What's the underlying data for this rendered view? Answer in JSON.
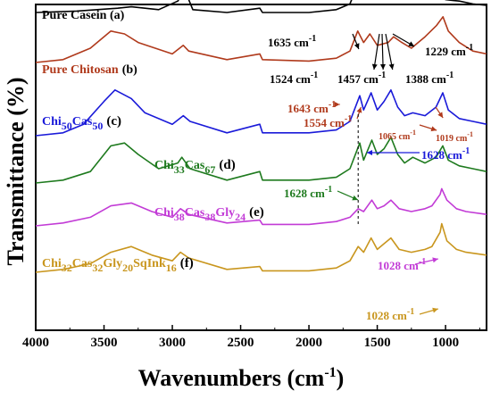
{
  "chart_data": {
    "type": "line",
    "title": "",
    "xlabel": "Wavenumbers (cm",
    "xlabel_sup": "-1",
    "xlabel_tail": ")",
    "ylabel": "Transmittance (%)",
    "xlim": [
      4000,
      700
    ],
    "x_reversed": true,
    "xticks": [
      4000,
      3500,
      3000,
      2500,
      2000,
      1500,
      1000
    ],
    "xtick_labels": [
      "4000",
      "3500",
      "3000",
      "2500",
      "2000",
      "1500",
      "1000"
    ],
    "yaxis_tick_labels": false,
    "grid": false,
    "legend": "inline labels next to each trace",
    "reference_line_x": 1640,
    "series": [
      {
        "label": "Pure Casein (a)",
        "color": "#000000",
        "baseline": 0.0,
        "points": [
          [
            4000,
            0
          ],
          [
            3700,
            -1
          ],
          [
            3400,
            -3
          ],
          [
            3300,
            -4
          ],
          [
            3100,
            -2
          ],
          [
            2960,
            -8
          ],
          [
            2930,
            -13
          ],
          [
            2880,
            -9
          ],
          [
            2850,
            -2
          ],
          [
            2600,
            0
          ],
          [
            2360,
            -3
          ],
          [
            2340,
            0
          ],
          [
            2000,
            0
          ],
          [
            1800,
            -2
          ],
          [
            1700,
            -6
          ],
          [
            1650,
            -18
          ],
          [
            1635,
            -14
          ],
          [
            1600,
            -10
          ],
          [
            1540,
            -24
          ],
          [
            1524,
            -20
          ],
          [
            1500,
            -15
          ],
          [
            1457,
            -22
          ],
          [
            1420,
            -15
          ],
          [
            1388,
            -20
          ],
          [
            1350,
            -15
          ],
          [
            1300,
            -12
          ],
          [
            1240,
            -18
          ],
          [
            1229,
            -16
          ],
          [
            1150,
            -10
          ],
          [
            1080,
            -14
          ],
          [
            1000,
            -9
          ],
          [
            900,
            -8
          ],
          [
            800,
            -6
          ],
          [
            700,
            -5
          ]
        ]
      },
      {
        "label": "Pure Chitosan",
        "label_suffix": "(b)",
        "color": "#b03a1c",
        "baseline": 0.0,
        "points": [
          [
            4000,
            0
          ],
          [
            3800,
            -2
          ],
          [
            3600,
            -10
          ],
          [
            3450,
            -22
          ],
          [
            3350,
            -20
          ],
          [
            3250,
            -14
          ],
          [
            3000,
            -6
          ],
          [
            2920,
            -12
          ],
          [
            2880,
            -8
          ],
          [
            2600,
            -2
          ],
          [
            2360,
            -6
          ],
          [
            2340,
            -2
          ],
          [
            2000,
            -1
          ],
          [
            1800,
            -3
          ],
          [
            1700,
            -8
          ],
          [
            1643,
            -22
          ],
          [
            1600,
            -14
          ],
          [
            1554,
            -20
          ],
          [
            1500,
            -12
          ],
          [
            1420,
            -14
          ],
          [
            1380,
            -18
          ],
          [
            1320,
            -14
          ],
          [
            1250,
            -10
          ],
          [
            1150,
            -18
          ],
          [
            1065,
            -26
          ],
          [
            1019,
            -32
          ],
          [
            980,
            -22
          ],
          [
            900,
            -14
          ],
          [
            800,
            -8
          ],
          [
            700,
            -6
          ]
        ]
      },
      {
        "label": "Chi₅₀Cas₅₀",
        "label_main": "Chi",
        "label_sub1": "50",
        "label_mid": "Cas",
        "label_sub2": "50",
        "label_suffix": "(c)",
        "color": "#1a1ad9",
        "baseline": 0.0,
        "points": [
          [
            4000,
            0
          ],
          [
            3800,
            -2
          ],
          [
            3650,
            -8
          ],
          [
            3500,
            -24
          ],
          [
            3420,
            -32
          ],
          [
            3300,
            -26
          ],
          [
            3200,
            -16
          ],
          [
            3000,
            -8
          ],
          [
            2920,
            -14
          ],
          [
            2870,
            -10
          ],
          [
            2600,
            -2
          ],
          [
            2360,
            -8
          ],
          [
            2340,
            -2
          ],
          [
            2000,
            -2
          ],
          [
            1800,
            -4
          ],
          [
            1700,
            -10
          ],
          [
            1628,
            -28
          ],
          [
            1600,
            -18
          ],
          [
            1545,
            -30
          ],
          [
            1500,
            -18
          ],
          [
            1450,
            -24
          ],
          [
            1400,
            -32
          ],
          [
            1350,
            -20
          ],
          [
            1300,
            -14
          ],
          [
            1240,
            -16
          ],
          [
            1150,
            -14
          ],
          [
            1070,
            -20
          ],
          [
            1020,
            -30
          ],
          [
            980,
            -18
          ],
          [
            900,
            -12
          ],
          [
            800,
            -10
          ],
          [
            700,
            -8
          ]
        ]
      },
      {
        "label": "Chi₃₃Cas₆₇",
        "label_main": "Chi",
        "label_sub1": "33",
        "label_mid": "Cas",
        "label_sub2": "67",
        "label_suffix": "(d)",
        "color": "#1e7a1e",
        "baseline": 0.0,
        "points": [
          [
            4000,
            0
          ],
          [
            3800,
            -2
          ],
          [
            3600,
            -8
          ],
          [
            3450,
            -26
          ],
          [
            3350,
            -28
          ],
          [
            3250,
            -20
          ],
          [
            3100,
            -10
          ],
          [
            2960,
            -14
          ],
          [
            2930,
            -18
          ],
          [
            2870,
            -10
          ],
          [
            2600,
            -2
          ],
          [
            2360,
            -8
          ],
          [
            2340,
            -2
          ],
          [
            2000,
            -2
          ],
          [
            1800,
            -4
          ],
          [
            1700,
            -10
          ],
          [
            1628,
            -28
          ],
          [
            1600,
            -16
          ],
          [
            1540,
            -30
          ],
          [
            1500,
            -20
          ],
          [
            1450,
            -24
          ],
          [
            1400,
            -32
          ],
          [
            1350,
            -20
          ],
          [
            1300,
            -14
          ],
          [
            1240,
            -18
          ],
          [
            1150,
            -14
          ],
          [
            1070,
            -18
          ],
          [
            1020,
            -26
          ],
          [
            980,
            -16
          ],
          [
            900,
            -12
          ],
          [
            800,
            -10
          ],
          [
            700,
            -8
          ]
        ]
      },
      {
        "label": "Chi₃₈Cas₃₈Gly₂₄",
        "label_main": "Chi",
        "label_sub1": "38",
        "label_mid": "Cas",
        "label_sub2": "38",
        "label_mid2": "Gly",
        "label_sub3": "24",
        "label_suffix": "(e)",
        "color": "#c23bd6",
        "baseline": 0.0,
        "points": [
          [
            4000,
            0
          ],
          [
            3800,
            -2
          ],
          [
            3600,
            -6
          ],
          [
            3450,
            -14
          ],
          [
            3300,
            -16
          ],
          [
            3150,
            -10
          ],
          [
            3000,
            -6
          ],
          [
            2940,
            -12
          ],
          [
            2880,
            -8
          ],
          [
            2600,
            -2
          ],
          [
            2360,
            -4
          ],
          [
            2340,
            -1
          ],
          [
            2000,
            -1
          ],
          [
            1800,
            -3
          ],
          [
            1700,
            -6
          ],
          [
            1640,
            -12
          ],
          [
            1600,
            -10
          ],
          [
            1540,
            -18
          ],
          [
            1500,
            -12
          ],
          [
            1450,
            -14
          ],
          [
            1400,
            -18
          ],
          [
            1340,
            -12
          ],
          [
            1250,
            -10
          ],
          [
            1150,
            -12
          ],
          [
            1100,
            -14
          ],
          [
            1040,
            -22
          ],
          [
            1028,
            -26
          ],
          [
            990,
            -18
          ],
          [
            920,
            -12
          ],
          [
            850,
            -10
          ],
          [
            700,
            -8
          ]
        ]
      },
      {
        "label": "Chi₃₂Cas₃₂Gly₂₀SqInk₁₆",
        "label_main": "Chi",
        "label_sub1": "32",
        "label_mid": "Cas",
        "label_sub2": "32",
        "label_mid2": "Gly",
        "label_sub3": "20",
        "label_mid3": "SqInk",
        "label_sub4": "16",
        "label_suffix": "(f)",
        "color": "#c9961e",
        "baseline": 0.0,
        "points": [
          [
            4000,
            0
          ],
          [
            3800,
            -2
          ],
          [
            3600,
            -6
          ],
          [
            3450,
            -14
          ],
          [
            3300,
            -18
          ],
          [
            3150,
            -12
          ],
          [
            3000,
            -8
          ],
          [
            2940,
            -14
          ],
          [
            2880,
            -10
          ],
          [
            2600,
            -2
          ],
          [
            2360,
            -4
          ],
          [
            2340,
            -1
          ],
          [
            2000,
            -1
          ],
          [
            1800,
            -3
          ],
          [
            1700,
            -8
          ],
          [
            1640,
            -18
          ],
          [
            1600,
            -14
          ],
          [
            1545,
            -24
          ],
          [
            1500,
            -16
          ],
          [
            1450,
            -20
          ],
          [
            1400,
            -24
          ],
          [
            1340,
            -16
          ],
          [
            1250,
            -14
          ],
          [
            1150,
            -16
          ],
          [
            1100,
            -18
          ],
          [
            1040,
            -28
          ],
          [
            1028,
            -34
          ],
          [
            990,
            -22
          ],
          [
            920,
            -16
          ],
          [
            850,
            -14
          ],
          [
            700,
            -12
          ]
        ]
      }
    ],
    "annotations": [
      {
        "text": "1635 cm",
        "sup": "-1",
        "color": "#000000"
      },
      {
        "text": "1524 cm",
        "sup": "-1",
        "color": "#000000"
      },
      {
        "text": "1457 cm",
        "sup": "-1",
        "color": "#000000"
      },
      {
        "text": "1388 cm",
        "sup": "-1",
        "color": "#000000"
      },
      {
        "text": "1229 cm",
        "sup": "-1",
        "color": "#000000"
      },
      {
        "text": "1643 cm",
        "sup": "-1",
        "color": "#b03a1c"
      },
      {
        "text": "1554 cm",
        "sup": "-1",
        "color": "#b03a1c"
      },
      {
        "text": "1065 cm",
        "sup": "-1",
        "color": "#b03a1c"
      },
      {
        "text": "1019 cm",
        "sup": "-1",
        "color": "#b03a1c"
      },
      {
        "text": "1628 cm",
        "sup": "-1",
        "color": "#1a1ad9"
      },
      {
        "text": "1628 cm",
        "sup": "-1",
        "color": "#1e7a1e"
      },
      {
        "text": "1028 cm",
        "sup": "-1",
        "color": "#c23bd6"
      },
      {
        "text": "1028 cm",
        "sup": "-1",
        "color": "#c9961e"
      }
    ]
  }
}
